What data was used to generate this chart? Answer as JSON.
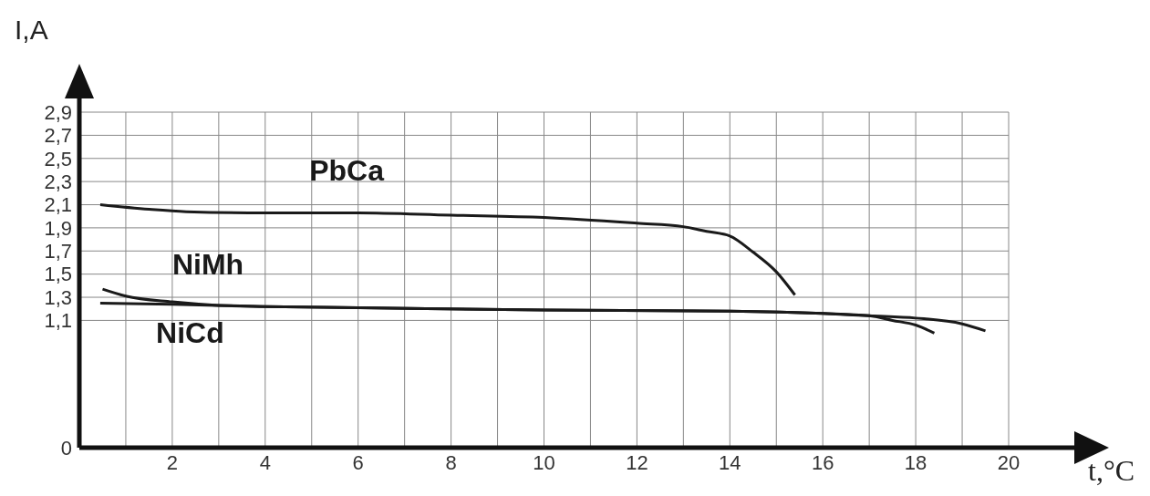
{
  "chart_data": {
    "type": "line",
    "xlabel": "t,°C",
    "ylabel": "I,A",
    "xlim": [
      0,
      20
    ],
    "ylim": [
      0,
      2.9
    ],
    "xticks": [
      {
        "value": 1,
        "label": null
      },
      2,
      {
        "value": 3,
        "label": null
      },
      4,
      {
        "value": 5,
        "label": null
      },
      6,
      {
        "value": 7,
        "label": null
      },
      8,
      {
        "value": 9,
        "label": null
      },
      10,
      {
        "value": 11,
        "label": null
      },
      12,
      {
        "value": 13,
        "label": null
      },
      14,
      {
        "value": 15,
        "label": null
      },
      16,
      {
        "value": 17,
        "label": null
      },
      18,
      {
        "value": 19,
        "label": null
      },
      20
    ],
    "yticks": [
      0,
      {
        "value": 1.1,
        "label": "1,1"
      },
      {
        "value": 1.3,
        "label": "1,3"
      },
      {
        "value": 1.5,
        "label": "1,5"
      },
      {
        "value": 1.7,
        "label": "1,7"
      },
      {
        "value": 1.9,
        "label": "1,9"
      },
      {
        "value": 2.1,
        "label": "2,1"
      },
      {
        "value": 2.3,
        "label": "2,3"
      },
      {
        "value": 2.5,
        "label": "2,5"
      },
      {
        "value": 2.7,
        "label": "2,7"
      },
      {
        "value": 2.9,
        "label": "2,9"
      }
    ],
    "grid": true,
    "marker": "none",
    "line_style": "solid",
    "series": [
      {
        "name": "PbCa",
        "color": "#1a1a1a",
        "x": [
          0.45,
          1.5,
          2.3,
          4,
          6,
          8,
          10,
          12,
          13,
          13.5,
          14,
          14.5,
          15,
          15.4
        ],
        "values": [
          2.1,
          2.06,
          2.04,
          2.03,
          2.03,
          2.01,
          1.99,
          1.94,
          1.91,
          1.87,
          1.83,
          1.69,
          1.52,
          1.32
        ]
      },
      {
        "name": "NiMh",
        "color": "#1a1a1a",
        "x": [
          0.5,
          1,
          2,
          3,
          4,
          6,
          10,
          14,
          16,
          17,
          17.5,
          18,
          18.4
        ],
        "values": [
          1.37,
          1.31,
          1.26,
          1.23,
          1.22,
          1.21,
          1.19,
          1.18,
          1.16,
          1.14,
          1.1,
          1.06,
          0.99
        ]
      },
      {
        "name": "NiCd",
        "color": "#1a1a1a",
        "x": [
          0.45,
          2,
          4,
          6,
          10,
          14,
          16,
          17,
          18,
          19,
          19.5
        ],
        "values": [
          1.25,
          1.24,
          1.22,
          1.21,
          1.19,
          1.18,
          1.16,
          1.14,
          1.12,
          1.07,
          1.01
        ]
      }
    ]
  }
}
